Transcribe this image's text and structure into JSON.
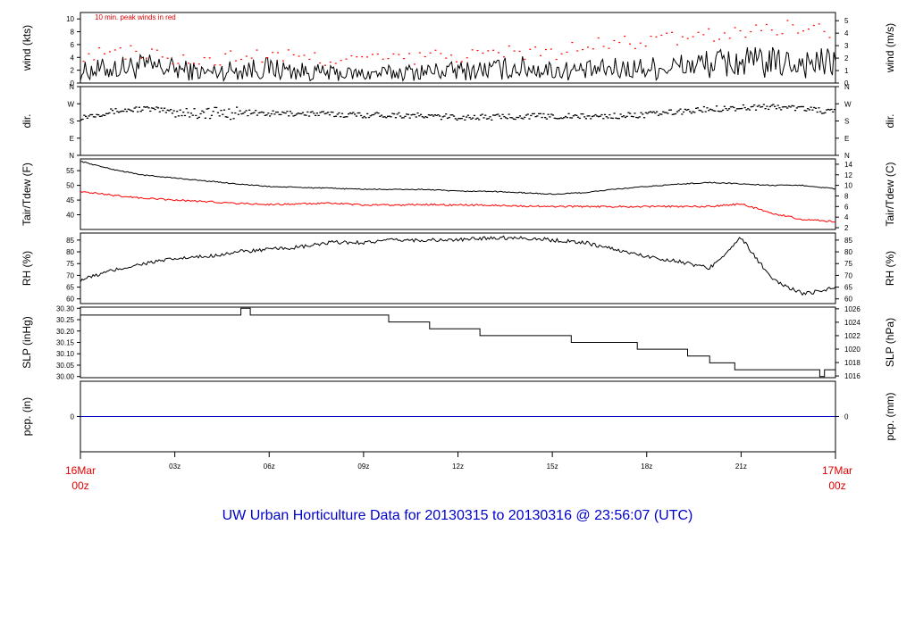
{
  "title": "UW Urban Horticulture Data for 20130315  to  20130316 @ 23:56:07  (UTC)",
  "start_label": {
    "line1": "16Mar",
    "line2": "00z"
  },
  "end_label": {
    "line1": "17Mar",
    "line2": "00z"
  },
  "x_ticks": [
    "03z",
    "06z",
    "09z",
    "12z",
    "15z",
    "18z",
    "21z"
  ],
  "wind_note": "10 min. peak winds in red",
  "colors": {
    "series": "#000000",
    "secondary": "#ff0000",
    "precip": "#0000cc",
    "title": "#0000cc",
    "dates": "#e00000"
  },
  "chart_data": [
    {
      "type": "line",
      "panel": "wind",
      "left_label": "wind (kts)",
      "right_label": "wind (m/s)",
      "x_unit": "hours since 16Mar 00z",
      "xlim": [
        0,
        24
      ],
      "ylim": [
        0,
        11
      ],
      "left_ticks": [
        "0",
        "2",
        "4",
        "6",
        "8",
        "10"
      ],
      "right_ticks": [
        "0",
        "1",
        "2",
        "3",
        "4",
        "5"
      ],
      "series": [
        {
          "name": "wind",
          "style": "line",
          "x": [
            0,
            1,
            2,
            3,
            4,
            5,
            6,
            7,
            8,
            9,
            10,
            11,
            12,
            13,
            14,
            15,
            16,
            17,
            18,
            19,
            20,
            21,
            22,
            23,
            24
          ],
          "values": [
            1.8,
            2.3,
            2.6,
            2.2,
            1.6,
            2.1,
            2.3,
            1.8,
            1.5,
            1.4,
            1.6,
            1.8,
            1.9,
            2.1,
            2.4,
            2.0,
            1.9,
            2.2,
            2.3,
            2.6,
            3.0,
            3.2,
            3.1,
            3.2,
            3.0
          ]
        },
        {
          "name": "10 min. peak winds",
          "style": "points",
          "x": [
            0,
            1,
            2,
            3,
            4,
            5,
            6,
            7,
            8,
            9,
            10,
            11,
            12,
            13,
            14,
            15,
            16,
            17,
            18,
            19,
            20,
            21,
            22,
            23,
            24
          ],
          "values": [
            4.3,
            4.7,
            4.8,
            3.5,
            3.2,
            4.3,
            4.1,
            4.0,
            3.8,
            3.8,
            3.7,
            4.1,
            4.3,
            4.6,
            4.9,
            4.6,
            5.6,
            6.2,
            6.5,
            7.0,
            7.4,
            8.0,
            8.6,
            9.0,
            7.4
          ]
        }
      ]
    },
    {
      "type": "scatter",
      "panel": "dir",
      "left_label": "dir.",
      "right_label": "dir.",
      "x_unit": "hours since 16Mar 00z",
      "xlim": [
        0,
        24
      ],
      "ylim": [
        0,
        360
      ],
      "left_ticks": [
        "N",
        "E",
        "S",
        "W",
        "N"
      ],
      "right_ticks": [
        "N",
        "E",
        "S",
        "W",
        "N"
      ],
      "series": [
        {
          "name": "wind direction",
          "x": [
            0,
            1,
            2,
            3,
            4,
            5,
            6,
            7,
            8,
            9,
            10,
            11,
            12,
            13,
            14,
            15,
            16,
            17,
            18,
            19,
            20,
            21,
            22,
            23,
            24
          ],
          "values": [
            200,
            230,
            245,
            230,
            220,
            225,
            218,
            220,
            215,
            212,
            212,
            205,
            200,
            200,
            205,
            205,
            203,
            206,
            213,
            228,
            243,
            250,
            255,
            246,
            225
          ]
        }
      ]
    },
    {
      "type": "line",
      "panel": "temperature",
      "left_label": "Tair/Tdew (F)",
      "right_label": "Tair/Tdew (C)",
      "x_unit": "hours since 16Mar 00z",
      "xlim": [
        0,
        24
      ],
      "ylim": [
        35,
        59
      ],
      "left_ticks": [
        "40",
        "45",
        "50",
        "55"
      ],
      "right_ticks": [
        "2",
        "4",
        "6",
        "8",
        "10",
        "12",
        "14"
      ],
      "series": [
        {
          "name": "Tair",
          "x": [
            0,
            1,
            2,
            3,
            4,
            5,
            6,
            7,
            8,
            9,
            10,
            11,
            12,
            13,
            14,
            15,
            16,
            17,
            18,
            19,
            20,
            21,
            22,
            23,
            24
          ],
          "values": [
            58.2,
            55.5,
            53.5,
            52.5,
            51.5,
            50.5,
            49.6,
            49.3,
            49.0,
            48.7,
            48.6,
            48.6,
            48.0,
            48.0,
            47.5,
            47.0,
            47.5,
            48.7,
            49.6,
            50.4,
            51.0,
            50.5,
            50.0,
            50.0,
            48.8
          ]
        },
        {
          "name": "Tdew",
          "x": [
            0,
            1,
            2,
            3,
            4,
            5,
            6,
            7,
            8,
            9,
            10,
            11,
            12,
            13,
            14,
            15,
            16,
            17,
            18,
            19,
            20,
            21,
            22,
            23,
            24
          ],
          "values": [
            47.8,
            46.7,
            45.6,
            45.0,
            44.5,
            43.9,
            43.5,
            43.7,
            43.9,
            43.3,
            43.3,
            43.5,
            43.3,
            43.3,
            43.0,
            42.8,
            42.8,
            42.8,
            42.8,
            42.8,
            42.8,
            43.7,
            40.5,
            38.3,
            37.7
          ]
        }
      ]
    },
    {
      "type": "line",
      "panel": "rh",
      "left_label": "RH (%)",
      "right_label": "RH (%)",
      "x_unit": "hours since 16Mar 00z",
      "xlim": [
        0,
        24
      ],
      "ylim": [
        58,
        88
      ],
      "left_ticks": [
        "60",
        "65",
        "70",
        "75",
        "80",
        "85"
      ],
      "right_ticks": [
        "60",
        "65",
        "70",
        "75",
        "80",
        "85"
      ],
      "series": [
        {
          "name": "RH",
          "x": [
            0,
            1,
            2,
            3,
            4,
            5,
            6,
            7,
            8,
            9,
            10,
            11,
            12,
            13,
            14,
            15,
            16,
            17,
            18,
            19,
            20,
            21,
            22,
            23,
            24
          ],
          "values": [
            68,
            72,
            75,
            77,
            78,
            80,
            81,
            82,
            84,
            84,
            85,
            85,
            85,
            86,
            86,
            85,
            84,
            81,
            78,
            76,
            73,
            86,
            68,
            62,
            65
          ]
        }
      ]
    },
    {
      "type": "line",
      "panel": "slp",
      "left_label": "SLP (inHg)",
      "right_label": "SLP (hPa)",
      "x_unit": "hours since 16Mar 00z",
      "xlim": [
        0,
        24
      ],
      "ylim": [
        29.995,
        30.305
      ],
      "left_ticks": [
        "30.00",
        "30.05",
        "30.10",
        "30.15",
        "30.20",
        "30.25",
        "30.30"
      ],
      "right_ticks": [
        "1016",
        "1018",
        "1020",
        "1022",
        "1024",
        "1026"
      ],
      "series": [
        {
          "name": "SLP",
          "step": true,
          "x": [
            0,
            5.1,
            5.4,
            9.8,
            11.1,
            12.7,
            12.9,
            15.6,
            17.7,
            19.3,
            20.0,
            20.8,
            23.5,
            23.65,
            24
          ],
          "values": [
            30.27,
            30.3,
            30.27,
            30.24,
            30.21,
            30.18,
            30.18,
            30.15,
            30.12,
            30.09,
            30.06,
            30.03,
            30.0,
            30.03,
            30.0
          ]
        }
      ]
    },
    {
      "type": "line",
      "panel": "precip",
      "left_label": "pcp. (in)",
      "right_label": "pcp. (mm)",
      "x_unit": "hours since 16Mar 00z",
      "xlim": [
        0,
        24
      ],
      "ylim": [
        -1,
        1
      ],
      "left_ticks": [
        "0"
      ],
      "right_ticks": [
        "0"
      ],
      "series": [
        {
          "name": "precipitation",
          "x": [
            0,
            24
          ],
          "values": [
            0,
            0
          ]
        }
      ]
    }
  ]
}
